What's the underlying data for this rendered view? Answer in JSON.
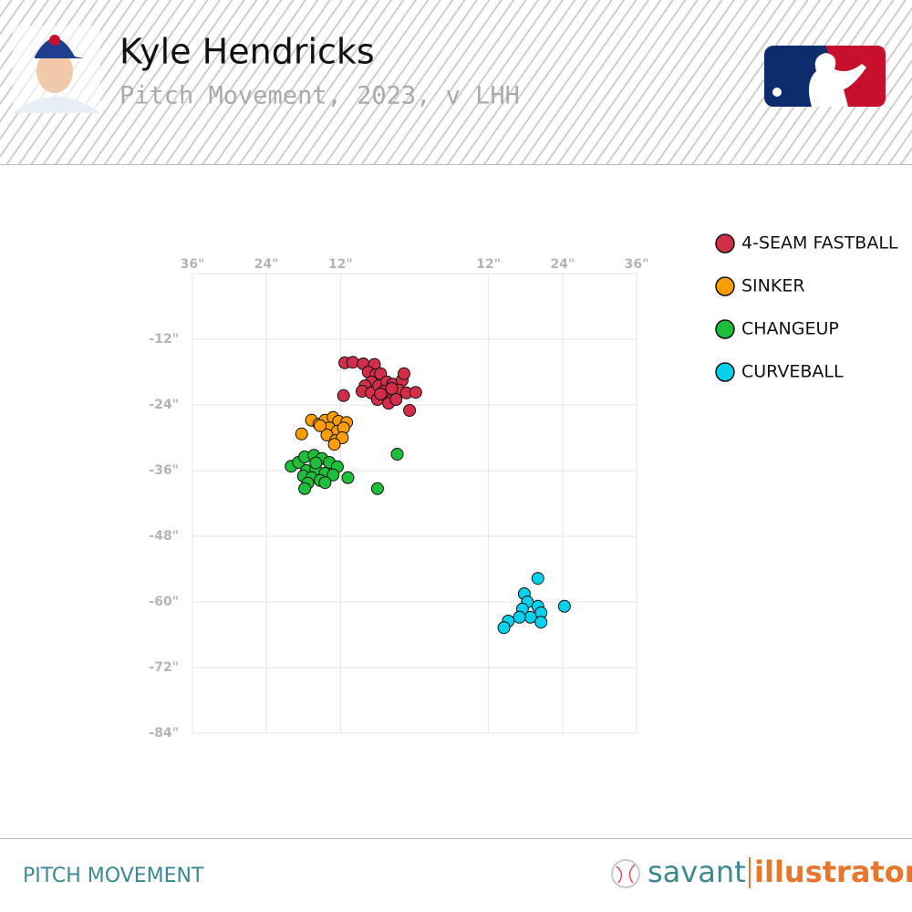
{
  "chart_data": {
    "type": "scatter",
    "title": "Kyle Hendricks",
    "subtitle": "Pitch Movement, 2023, v LHH",
    "xlim": [
      -36,
      36
    ],
    "ylim": [
      -84,
      0
    ],
    "xticks": [
      {
        "value": -36,
        "label": "36\""
      },
      {
        "value": -24,
        "label": "24\""
      },
      {
        "value": -12,
        "label": "12\""
      },
      {
        "value": 12,
        "label": "12\""
      },
      {
        "value": 24,
        "label": "24\""
      },
      {
        "value": 36,
        "label": "36\""
      }
    ],
    "yticks": [
      {
        "value": -12,
        "label": "-12\""
      },
      {
        "value": -24,
        "label": "-24\""
      },
      {
        "value": -36,
        "label": "-36\""
      },
      {
        "value": -48,
        "label": "-48\""
      },
      {
        "value": -60,
        "label": "-60\""
      },
      {
        "value": -72,
        "label": "-72\""
      },
      {
        "value": -84,
        "label": "-84\""
      }
    ],
    "grid": true,
    "legend": "right",
    "series": [
      {
        "name": "4-SEAM FASTBALL",
        "color": "#d22d49",
        "x": [
          -11.3,
          -10,
          -8.3,
          -6.5,
          -7.5,
          -6.3,
          -5.5,
          -7,
          -8,
          -8.5,
          -7,
          -5.8,
          -4.5,
          -3.5,
          -2,
          -1.7,
          -2.5,
          -4,
          -5,
          -6,
          -4.2,
          -3,
          -1.3,
          0.2,
          -0.8,
          -11.5,
          -5.5,
          -3.7
        ],
        "values": [
          -16.3,
          -16.2,
          -16.5,
          -16.6,
          -18,
          -18.5,
          -18.3,
          -19.8,
          -20.5,
          -21.5,
          -21.8,
          -20.5,
          -19.8,
          -20.2,
          -19.5,
          -18.3,
          -21.3,
          -22.3,
          -21.5,
          -23,
          -23.7,
          -23,
          -21.8,
          -21.7,
          -25,
          -22.3,
          -22,
          -21
        ]
      },
      {
        "name": "SINKER",
        "color": "#fe9d00",
        "x": [
          -16.7,
          -15.5,
          -14.5,
          -13.2,
          -12.3,
          -11,
          -13.8,
          -12.5,
          -11.5,
          -14.2,
          -12.8,
          -11.7,
          -18.3,
          -13,
          -15.3
        ],
        "values": [
          -26.8,
          -27.5,
          -26.8,
          -26.3,
          -27,
          -27.2,
          -28.2,
          -28.8,
          -28.2,
          -29.5,
          -30.5,
          -30,
          -29.3,
          -31.2,
          -27.8
        ]
      },
      {
        "name": "CHANGEUP",
        "color": "#1dbe3a",
        "x": [
          -20,
          -18.8,
          -17.8,
          -16.3,
          -15,
          -13.8,
          -12.5,
          -17.5,
          -16,
          -14.5,
          -13.2,
          -18,
          -16.7,
          -15.3,
          -17.3,
          -17.8,
          -14.5,
          -10.8,
          -2.8,
          -6,
          -16
        ],
        "values": [
          -35.2,
          -34.5,
          -33.5,
          -33.2,
          -33.8,
          -34.5,
          -35.3,
          -36,
          -35.8,
          -36.5,
          -36.8,
          -37,
          -37.3,
          -37.8,
          -38.3,
          -39.3,
          -38.2,
          -37.3,
          -33,
          -39.3,
          -34.6
        ]
      },
      {
        "name": "CURVEBALL",
        "color": "#00d1ed",
        "x": [
          20,
          17.8,
          18.3,
          20,
          17.5,
          20.5,
          24.3,
          18.8,
          17,
          20.5,
          15.2,
          14.5
        ],
        "values": [
          -55.7,
          -58.5,
          -60,
          -60.8,
          -61.3,
          -62,
          -60.8,
          -62.8,
          -62.8,
          -63.7,
          -63.5,
          -64.7
        ]
      }
    ]
  },
  "footer": {
    "label": "PITCH MOVEMENT",
    "brand": [
      "savant",
      "illustrator"
    ]
  }
}
